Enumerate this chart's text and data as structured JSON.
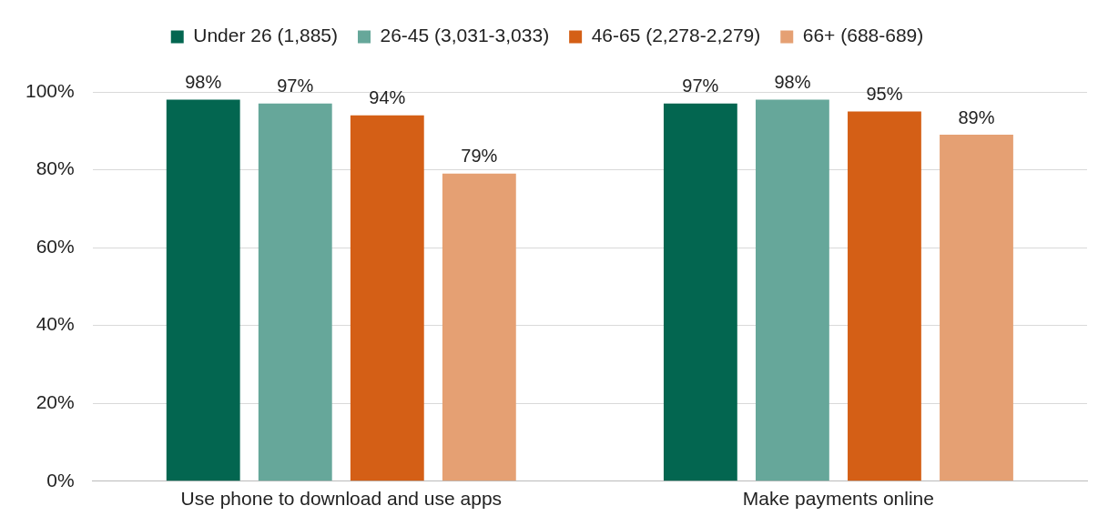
{
  "chart_data": {
    "type": "bar",
    "categories": [
      "Use phone to download and use apps",
      "Make payments online"
    ],
    "series": [
      {
        "name": "Under 26 (1,885)",
        "color": "#036650",
        "values": [
          98,
          97
        ],
        "value_labels": [
          "98%",
          "97%"
        ]
      },
      {
        "name": "26-45 (3,031-3,033)",
        "color": "#66a79a",
        "values": [
          97,
          98
        ],
        "value_labels": [
          "97%",
          "98%"
        ]
      },
      {
        "name": "46-65 (2,278-2,279)",
        "color": "#d45f16",
        "values": [
          94,
          95
        ],
        "value_labels": [
          "94%",
          "95%"
        ]
      },
      {
        "name": "66+ (688-689)",
        "color": "#e5a073",
        "values": [
          79,
          89
        ],
        "value_labels": [
          "79%",
          "89%"
        ]
      }
    ],
    "ylim": [
      0,
      100
    ],
    "yticks": [
      {
        "value": 0,
        "label": "0%"
      },
      {
        "value": 20,
        "label": "20%"
      },
      {
        "value": 40,
        "label": "40%"
      },
      {
        "value": 60,
        "label": "60%"
      },
      {
        "value": 80,
        "label": "80%"
      },
      {
        "value": 100,
        "label": "100%"
      }
    ],
    "grid": "y",
    "legend": "top"
  }
}
